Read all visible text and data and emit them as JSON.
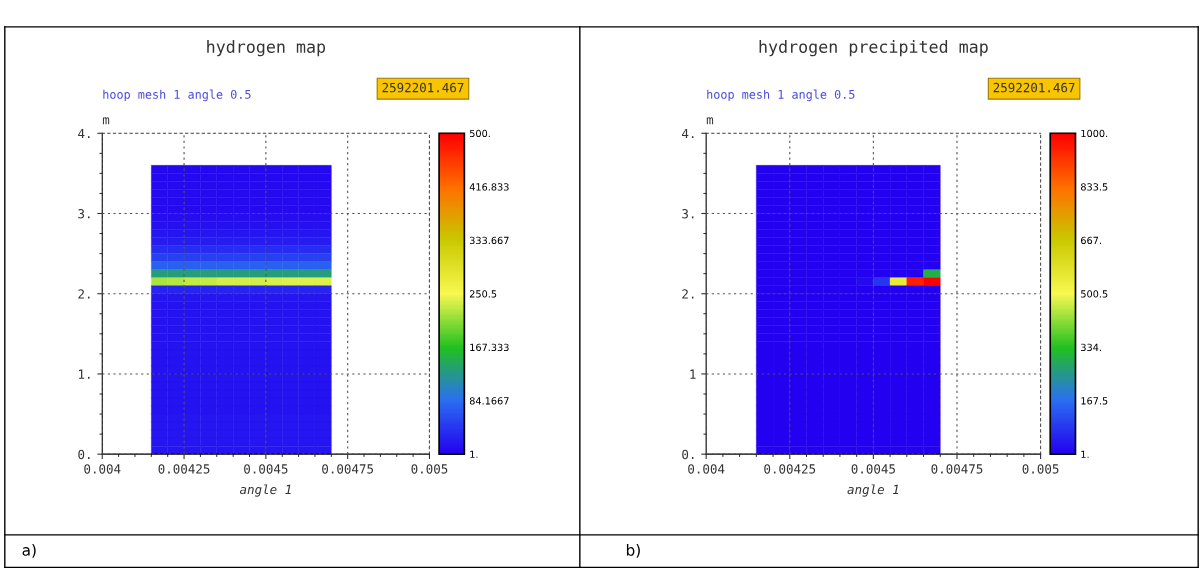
{
  "chart_data": [
    {
      "type": "heatmap",
      "title": "hydrogen map",
      "subtitle": "hoop mesh 1 angle 0.5",
      "xlabel": "angle 1",
      "ylabel": "m",
      "annotations": [
        "2592201.467",
        "a)"
      ],
      "x": [
        0.004175,
        0.004225,
        0.004275,
        0.004325,
        0.004375,
        0.004425,
        0.004475,
        0.004525,
        0.004575,
        0.004625,
        0.004675
      ],
      "y": [
        3.55,
        3.45,
        3.35,
        3.25,
        3.15,
        3.05,
        2.95,
        2.85,
        2.75,
        2.65,
        2.55,
        2.45,
        2.35,
        2.25,
        2.15,
        2.05,
        1.95,
        1.85,
        1.75,
        1.65,
        1.55,
        1.45,
        1.35,
        1.25,
        1.15,
        1.05,
        0.95,
        0.85,
        0.75,
        0.65,
        0.55,
        0.45,
        0.35,
        0.25,
        0.15,
        0.05
      ],
      "xlim": [
        0.004,
        0.005
      ],
      "xticks": [
        0.004,
        0.00425,
        0.0045,
        0.00475,
        0.005
      ],
      "ylim": [
        0,
        4
      ],
      "yticks": [
        {
          "value": 0,
          "label": "0."
        },
        {
          "value": 1,
          "label": "1."
        },
        {
          "value": 2,
          "label": "2."
        },
        {
          "value": 3,
          "label": "3."
        },
        {
          "value": 4,
          "label": "4."
        }
      ],
      "clim": [
        1,
        500
      ],
      "cticks": [
        {
          "value": 1,
          "label": "1."
        },
        84.1667,
        167.333,
        250.5,
        333.667,
        416.833,
        {
          "value": 500,
          "label": "500."
        }
      ],
      "grid": true,
      "cells": [
        [
          8,
          8,
          8,
          8,
          8,
          8,
          8,
          8,
          8,
          8,
          8
        ],
        [
          8,
          8,
          8,
          8,
          8,
          8,
          8,
          8,
          8,
          8,
          8
        ],
        [
          9,
          9,
          9,
          9,
          9,
          9,
          9,
          9,
          9,
          9,
          9
        ],
        [
          9,
          9,
          9,
          9,
          9,
          9,
          9,
          9,
          9,
          9,
          9
        ],
        [
          10,
          10,
          10,
          10,
          10,
          10,
          10,
          10,
          10,
          10,
          10
        ],
        [
          10,
          10,
          10,
          10,
          10,
          10,
          10,
          10,
          10,
          10,
          10
        ],
        [
          12,
          12,
          12,
          12,
          12,
          12,
          12,
          12,
          12,
          12,
          12
        ],
        [
          14,
          14,
          14,
          14,
          14,
          14,
          14,
          14,
          14,
          14,
          14
        ],
        [
          18,
          18,
          18,
          18,
          18,
          18,
          18,
          18,
          18,
          18,
          18
        ],
        [
          24,
          24,
          24,
          24,
          24,
          24,
          24,
          24,
          24,
          24,
          24
        ],
        [
          35,
          35,
          35,
          35,
          35,
          35,
          35,
          35,
          35,
          35,
          35
        ],
        [
          50,
          50,
          50,
          50,
          50,
          50,
          50,
          50,
          50,
          50,
          50
        ],
        [
          75,
          75,
          75,
          75,
          75,
          75,
          75,
          75,
          75,
          75,
          75
        ],
        [
          130,
          130,
          130,
          130,
          130,
          130,
          130,
          130,
          130,
          130,
          130
        ],
        [
          220,
          225,
          230,
          230,
          235,
          235,
          235,
          238,
          240,
          240,
          240
        ],
        [
          30,
          30,
          30,
          30,
          30,
          30,
          30,
          30,
          30,
          30,
          30
        ],
        [
          18,
          18,
          18,
          18,
          18,
          18,
          18,
          18,
          18,
          18,
          18
        ],
        [
          16,
          16,
          16,
          16,
          16,
          16,
          16,
          16,
          16,
          16,
          16
        ],
        [
          16,
          16,
          16,
          16,
          16,
          16,
          16,
          16,
          16,
          16,
          16
        ],
        [
          16,
          16,
          16,
          16,
          16,
          16,
          16,
          16,
          16,
          16,
          16
        ],
        [
          16,
          16,
          16,
          16,
          16,
          16,
          16,
          16,
          16,
          16,
          16
        ],
        [
          16,
          16,
          16,
          16,
          16,
          16,
          16,
          16,
          16,
          16,
          16
        ],
        [
          16,
          16,
          16,
          16,
          16,
          16,
          16,
          16,
          16,
          16,
          16
        ],
        [
          16,
          16,
          16,
          16,
          16,
          16,
          16,
          16,
          16,
          16,
          16
        ],
        [
          16,
          16,
          16,
          16,
          16,
          16,
          16,
          16,
          16,
          16,
          16
        ],
        [
          16,
          16,
          16,
          16,
          16,
          16,
          16,
          16,
          16,
          16,
          16
        ],
        [
          16,
          16,
          16,
          16,
          16,
          16,
          16,
          16,
          16,
          16,
          16
        ],
        [
          16,
          16,
          16,
          16,
          16,
          16,
          16,
          16,
          16,
          16,
          16
        ],
        [
          16,
          16,
          16,
          16,
          16,
          16,
          16,
          16,
          16,
          16,
          16
        ],
        [
          16,
          16,
          16,
          16,
          16,
          16,
          16,
          16,
          16,
          16,
          16
        ],
        [
          16,
          16,
          16,
          16,
          16,
          16,
          16,
          16,
          16,
          16,
          16
        ],
        [
          18,
          18,
          18,
          18,
          18,
          18,
          18,
          18,
          18,
          18,
          18
        ],
        [
          18,
          18,
          18,
          18,
          18,
          18,
          18,
          18,
          18,
          18,
          18
        ],
        [
          18,
          18,
          18,
          18,
          18,
          18,
          18,
          18,
          18,
          18,
          18
        ],
        [
          18,
          18,
          18,
          18,
          18,
          18,
          18,
          18,
          18,
          18,
          18
        ],
        [
          18,
          18,
          18,
          18,
          18,
          18,
          18,
          18,
          18,
          18,
          18
        ]
      ]
    },
    {
      "type": "heatmap",
      "title": "hydrogen precipited map",
      "subtitle": "hoop mesh 1 angle 0.5",
      "xlabel": "angle 1",
      "ylabel": "m",
      "annotations": [
        "2592201.467",
        "b)"
      ],
      "x": [
        0.004175,
        0.004225,
        0.004275,
        0.004325,
        0.004375,
        0.004425,
        0.004475,
        0.004525,
        0.004575,
        0.004625,
        0.004675
      ],
      "y": [
        3.55,
        3.45,
        3.35,
        3.25,
        3.15,
        3.05,
        2.95,
        2.85,
        2.75,
        2.65,
        2.55,
        2.45,
        2.35,
        2.25,
        2.15,
        2.05,
        1.95,
        1.85,
        1.75,
        1.65,
        1.55,
        1.45,
        1.35,
        1.25,
        1.15,
        1.05,
        0.95,
        0.85,
        0.75,
        0.65,
        0.55,
        0.45,
        0.35,
        0.25,
        0.15,
        0.05
      ],
      "xlim": [
        0.004,
        0.005
      ],
      "xticks": [
        0.004,
        0.00425,
        0.0045,
        0.00475,
        0.005
      ],
      "ylim": [
        0,
        4
      ],
      "yticks": [
        {
          "value": 0,
          "label": "0."
        },
        1,
        {
          "value": 2,
          "label": "2."
        },
        {
          "value": 3,
          "label": "3."
        },
        {
          "value": 4,
          "label": "4."
        }
      ],
      "clim": [
        1,
        1000
      ],
      "cticks": [
        {
          "value": 1,
          "label": "1."
        },
        167.5,
        {
          "value": 334,
          "label": "334."
        },
        500.5,
        {
          "value": 667,
          "label": "667."
        },
        833.5,
        {
          "value": 1000,
          "label": "1000."
        }
      ],
      "grid": true,
      "cells": [
        [
          1,
          1,
          1,
          1,
          1,
          1,
          1,
          1,
          1,
          1,
          1
        ],
        [
          1,
          1,
          1,
          1,
          1,
          1,
          1,
          1,
          1,
          1,
          1
        ],
        [
          1,
          1,
          1,
          1,
          1,
          1,
          1,
          1,
          1,
          1,
          1
        ],
        [
          1,
          1,
          1,
          1,
          1,
          1,
          1,
          1,
          1,
          1,
          1
        ],
        [
          1,
          1,
          1,
          1,
          1,
          1,
          1,
          1,
          1,
          1,
          1
        ],
        [
          1,
          1,
          1,
          1,
          1,
          1,
          1,
          1,
          1,
          1,
          1
        ],
        [
          1,
          1,
          1,
          1,
          1,
          1,
          1,
          1,
          1,
          1,
          1
        ],
        [
          1,
          1,
          1,
          1,
          1,
          1,
          1,
          1,
          1,
          1,
          1
        ],
        [
          1,
          1,
          1,
          1,
          1,
          1,
          1,
          1,
          1,
          1,
          1
        ],
        [
          1,
          1,
          1,
          1,
          1,
          1,
          1,
          1,
          1,
          1,
          1
        ],
        [
          1,
          1,
          1,
          1,
          1,
          1,
          1,
          1,
          1,
          1,
          1
        ],
        [
          1,
          1,
          1,
          1,
          1,
          1,
          1,
          1,
          1,
          1,
          1
        ],
        [
          1,
          1,
          1,
          1,
          1,
          1,
          1,
          1,
          1,
          1,
          1
        ],
        [
          1,
          1,
          1,
          1,
          1,
          1,
          1,
          1,
          1,
          1,
          300
        ],
        [
          1,
          1,
          1,
          1,
          1,
          1,
          20,
          80,
          550,
          950,
          1000
        ],
        [
          1,
          1,
          1,
          1,
          1,
          1,
          1,
          1,
          1,
          1,
          1
        ],
        [
          1,
          1,
          1,
          1,
          1,
          1,
          1,
          1,
          1,
          1,
          1
        ],
        [
          1,
          1,
          1,
          1,
          1,
          1,
          1,
          1,
          1,
          1,
          1
        ],
        [
          1,
          1,
          1,
          1,
          1,
          1,
          1,
          1,
          1,
          1,
          1
        ],
        [
          1,
          1,
          1,
          1,
          1,
          1,
          1,
          1,
          1,
          1,
          1
        ],
        [
          1,
          1,
          1,
          1,
          1,
          1,
          1,
          1,
          1,
          1,
          1
        ],
        [
          1,
          1,
          1,
          1,
          1,
          1,
          1,
          1,
          1,
          1,
          1
        ],
        [
          1,
          1,
          1,
          1,
          1,
          1,
          1,
          1,
          1,
          1,
          1
        ],
        [
          1,
          1,
          1,
          1,
          1,
          1,
          1,
          1,
          1,
          1,
          1
        ],
        [
          1,
          1,
          1,
          1,
          1,
          1,
          1,
          1,
          1,
          1,
          1
        ],
        [
          1,
          1,
          1,
          1,
          1,
          1,
          1,
          1,
          1,
          1,
          1
        ],
        [
          1,
          1,
          1,
          1,
          1,
          1,
          1,
          1,
          1,
          1,
          1
        ],
        [
          1,
          1,
          1,
          1,
          1,
          1,
          1,
          1,
          1,
          1,
          1
        ],
        [
          1,
          1,
          1,
          1,
          1,
          1,
          1,
          1,
          1,
          1,
          1
        ],
        [
          1,
          1,
          1,
          1,
          1,
          1,
          1,
          1,
          1,
          1,
          1
        ],
        [
          1,
          1,
          1,
          1,
          1,
          1,
          1,
          1,
          1,
          1,
          1
        ],
        [
          1,
          1,
          1,
          1,
          1,
          1,
          1,
          1,
          1,
          1,
          1
        ],
        [
          1,
          1,
          1,
          1,
          1,
          1,
          1,
          1,
          1,
          1,
          1
        ],
        [
          1,
          1,
          1,
          1,
          1,
          1,
          1,
          1,
          1,
          1,
          1
        ],
        [
          1,
          1,
          1,
          1,
          1,
          1,
          1,
          1,
          1,
          1,
          1
        ],
        [
          1,
          1,
          1,
          1,
          1,
          1,
          1,
          1,
          1,
          1,
          1
        ]
      ]
    }
  ]
}
